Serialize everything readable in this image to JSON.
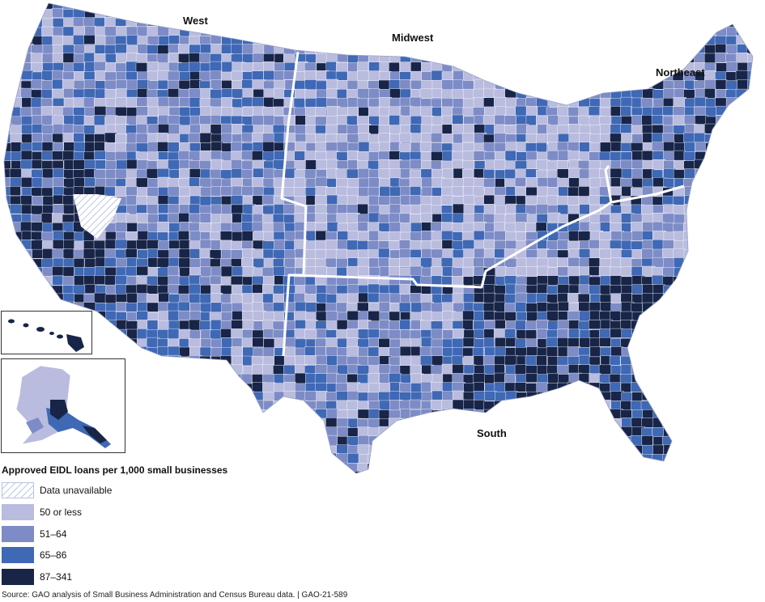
{
  "regions": {
    "west": "West",
    "midwest": "Midwest",
    "northeast": "Northeast",
    "south": "South"
  },
  "legend": {
    "title": "Approved EIDL loans per 1,000 small businesses",
    "items": [
      {
        "label": "Data unavailable",
        "color": "hatched"
      },
      {
        "label": "50 or less",
        "color": "#b9bcde"
      },
      {
        "label": "51–64",
        "color": "#7d8cc6"
      },
      {
        "label": "65–86",
        "color": "#3f68b5"
      },
      {
        "label": "87–341",
        "color": "#182548"
      }
    ]
  },
  "source": "Source: GAO analysis of Small Business Administration and Census Bureau data.  |  GAO-21-589",
  "colors": {
    "low": "#b9bcde",
    "mid_low": "#7d8cc6",
    "mid_high": "#3f68b5",
    "high": "#182548",
    "border": "#ffffff"
  }
}
